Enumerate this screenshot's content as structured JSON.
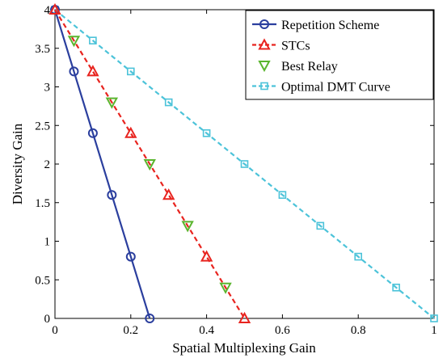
{
  "chart_data": {
    "type": "line",
    "xlabel": "Spatial Multiplexing Gain",
    "ylabel": "Diversity Gain",
    "xlim": [
      0,
      1
    ],
    "ylim": [
      0,
      4
    ],
    "xticks": [
      "0",
      "0.2",
      "0.4",
      "0.6",
      "0.8",
      "1"
    ],
    "yticks": [
      "0",
      "0.5",
      "1",
      "1.5",
      "2",
      "2.5",
      "3",
      "3.5",
      "4"
    ],
    "grid": false,
    "legend_position": "top-right",
    "series": [
      {
        "name": "Repetition Scheme",
        "color": "#2b3f9e",
        "line_style": "solid",
        "marker": "circle",
        "x": [
          0,
          0.05,
          0.1,
          0.15,
          0.2,
          0.25
        ],
        "y": [
          4,
          3.2,
          2.4,
          1.6,
          0.8,
          0
        ]
      },
      {
        "name": "STCs",
        "color": "#e8241f",
        "line_style": "dashed",
        "marker": "triangle-up",
        "x": [
          0,
          0.1,
          0.2,
          0.3,
          0.4,
          0.5
        ],
        "y": [
          4,
          3.2,
          2.4,
          1.6,
          0.8,
          0
        ]
      },
      {
        "name": "Best Relay",
        "color": "#5ab52e",
        "line_style": "none",
        "marker": "triangle-down",
        "x": [
          0.05,
          0.15,
          0.25,
          0.35,
          0.45
        ],
        "y": [
          3.6,
          2.8,
          2.0,
          1.2,
          0.4
        ]
      },
      {
        "name": "Optimal DMT Curve",
        "color": "#4cc3d9",
        "line_style": "dashed",
        "marker": "square",
        "x": [
          0,
          0.1,
          0.2,
          0.3,
          0.4,
          0.5,
          0.6,
          0.7,
          0.8,
          0.9,
          1.0
        ],
        "y": [
          4,
          3.6,
          3.2,
          2.8,
          2.4,
          2.0,
          1.6,
          1.2,
          0.8,
          0.4,
          0
        ]
      }
    ]
  }
}
